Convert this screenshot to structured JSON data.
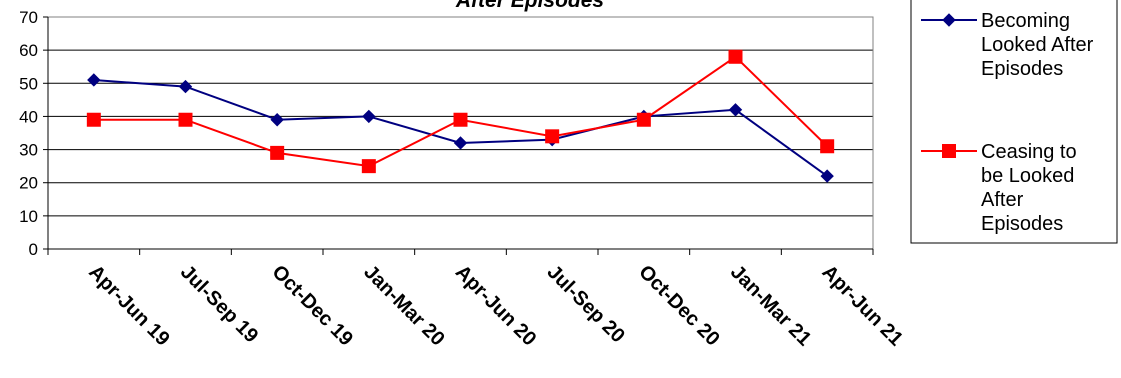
{
  "chart_data": {
    "type": "line",
    "title": "After Episodes",
    "categories": [
      "Apr-Jun 19",
      "Jul-Sep 19",
      "Oct-Dec 19",
      "Jan-Mar 20",
      "Apr-Jun 20",
      "Jul-Sep 20",
      "Oct-Dec 20",
      "Jan-Mar 21",
      "Apr-Jun 21"
    ],
    "series": [
      {
        "name": "Becoming Looked After Episodes",
        "legend_lines": [
          "Becoming",
          "Looked After",
          "Episodes"
        ],
        "values": [
          51,
          49,
          39,
          40,
          32,
          33,
          40,
          42,
          22
        ],
        "color": "#000080",
        "marker": "diamond"
      },
      {
        "name": "Ceasing to be Looked After Episodes",
        "legend_lines": [
          "Ceasing to",
          "be Looked",
          "After",
          "Episodes"
        ],
        "values": [
          39,
          39,
          29,
          25,
          39,
          34,
          39,
          58,
          31
        ],
        "color": "#ff0000",
        "marker": "square"
      }
    ],
    "ylim": [
      0,
      70
    ],
    "yticks": [
      "0",
      "10",
      "20",
      "30",
      "40",
      "50",
      "60",
      "70"
    ],
    "grid": true,
    "legend": "right"
  }
}
